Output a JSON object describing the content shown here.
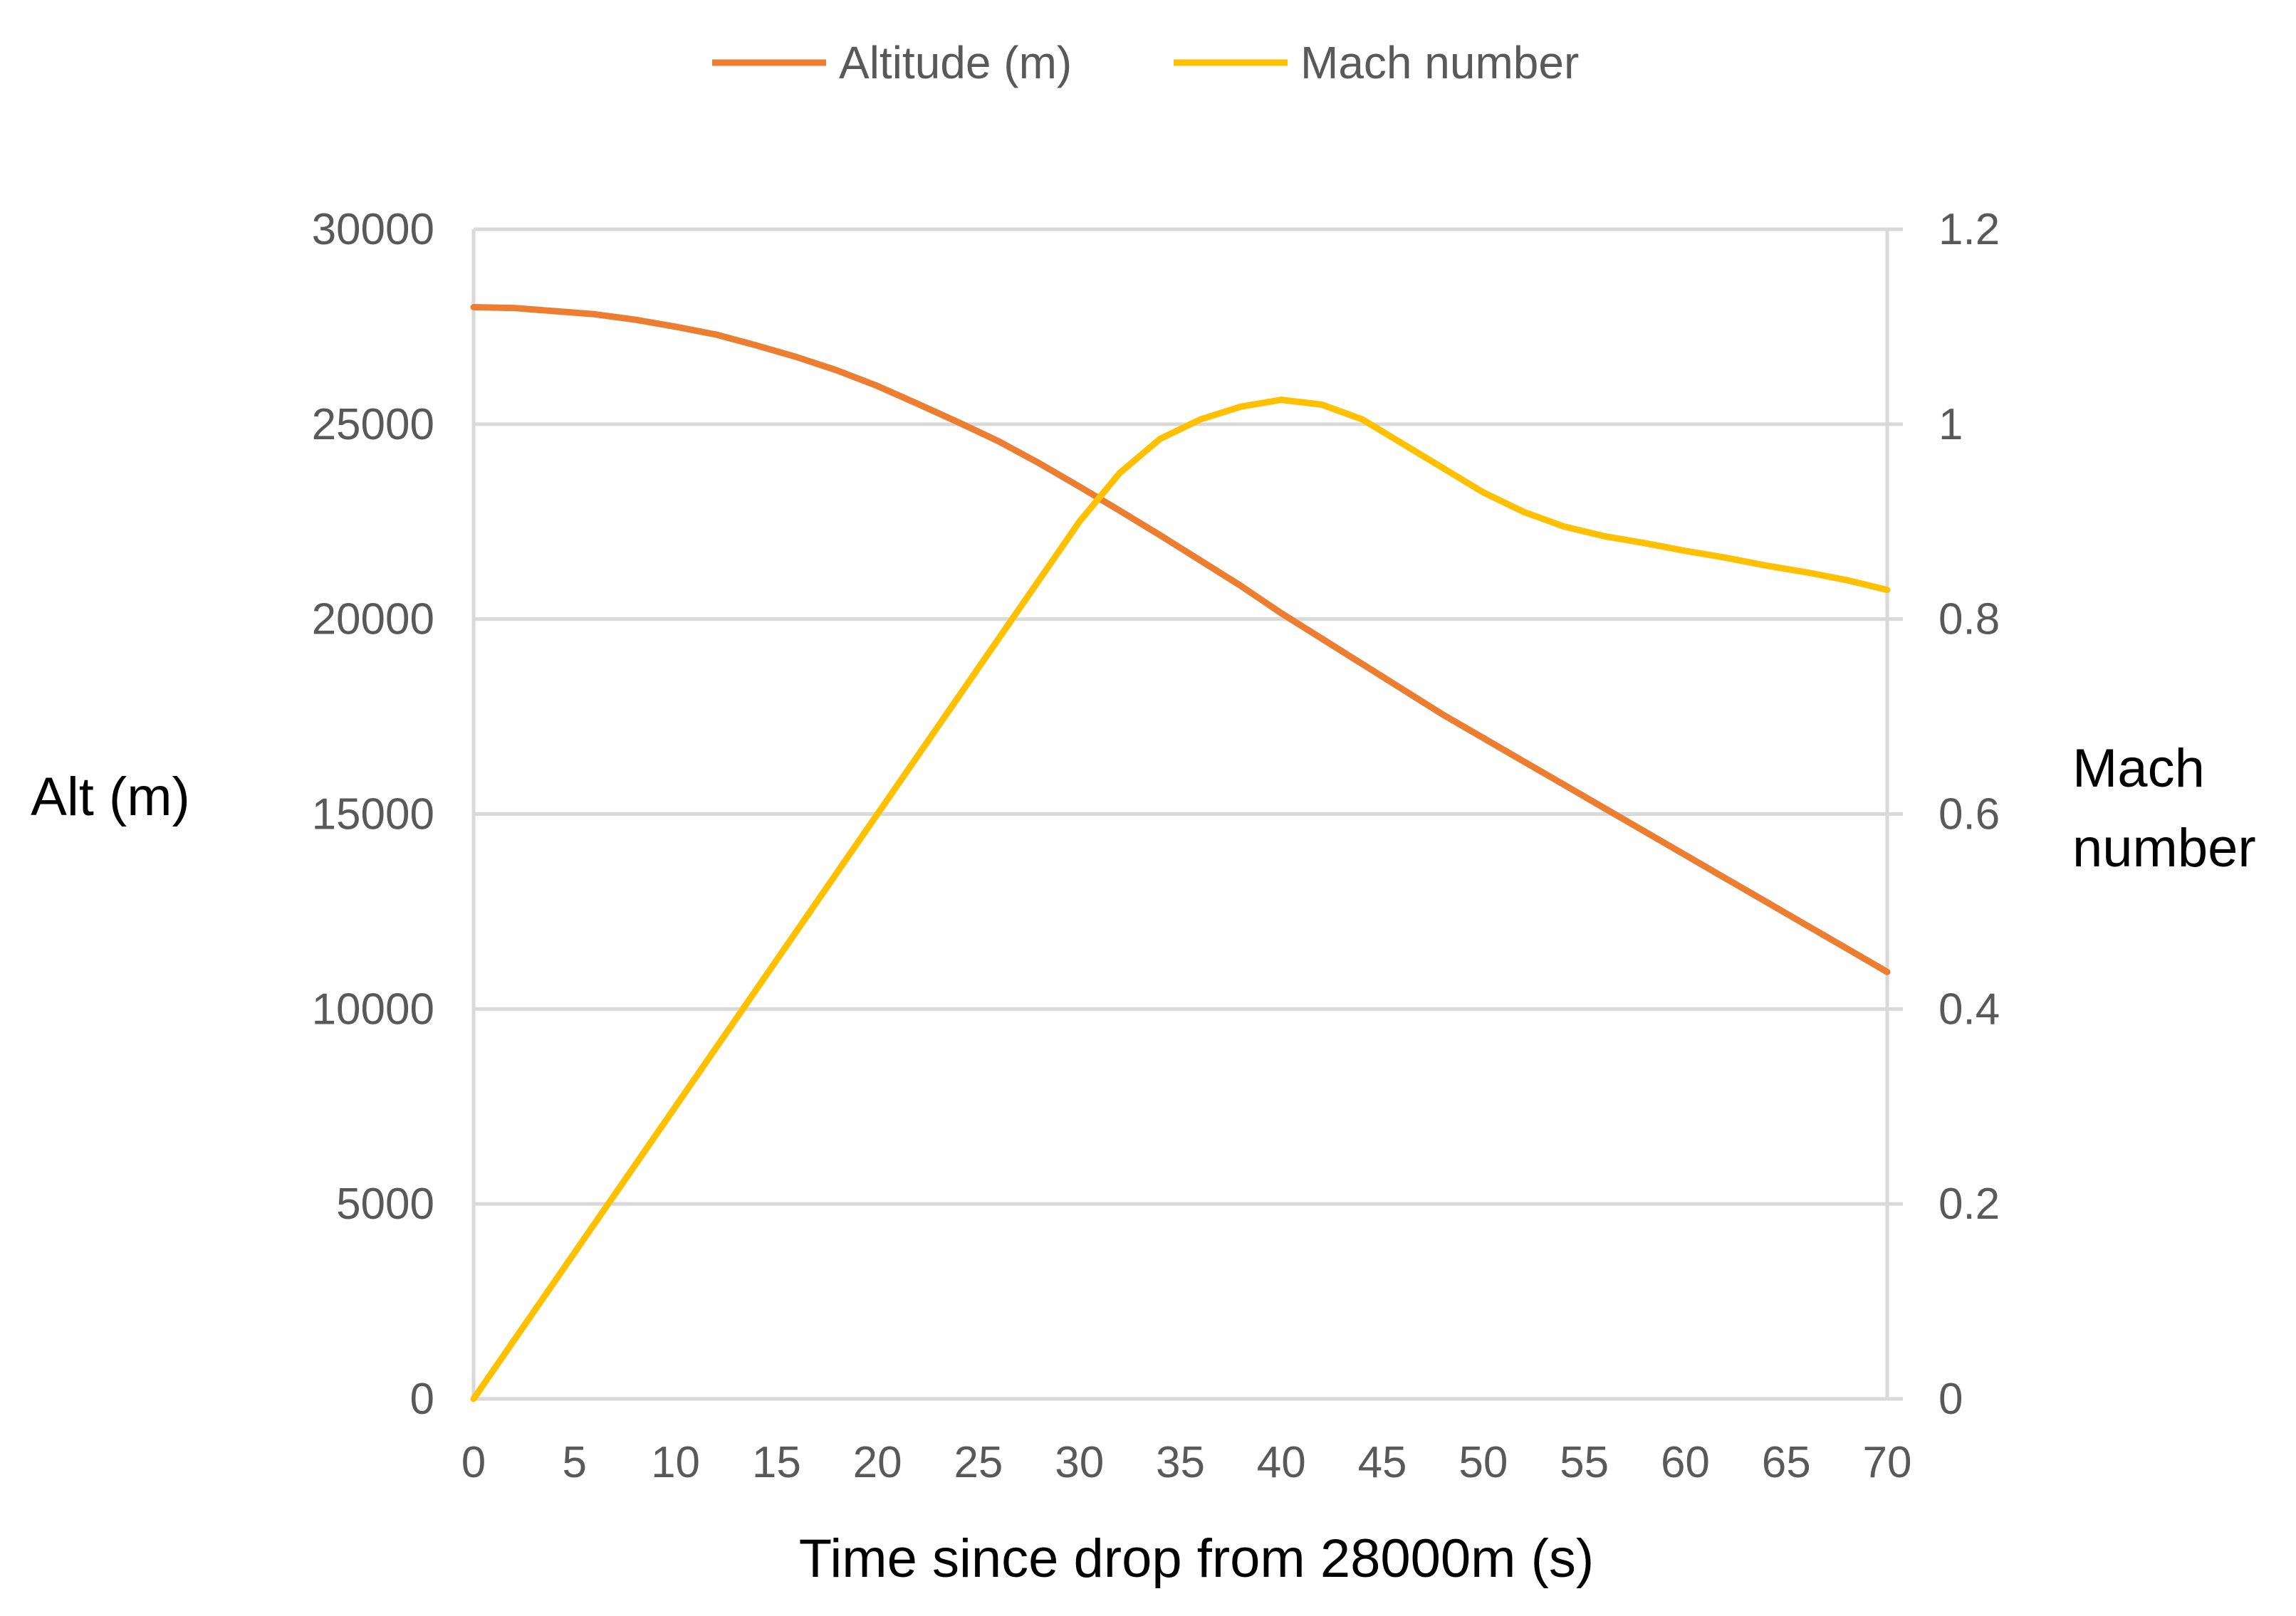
{
  "chart_data": {
    "type": "line",
    "title": "",
    "xlabel": "Time since drop from 28000m (s)",
    "ylabel": "Alt (m)",
    "y2label_lines": [
      "Mach",
      "number"
    ],
    "xlim": [
      0,
      70
    ],
    "ylim": [
      0,
      30000
    ],
    "y2lim": [
      0,
      1.2
    ],
    "x_ticks": [
      0,
      5,
      10,
      15,
      20,
      25,
      30,
      35,
      40,
      45,
      50,
      55,
      60,
      65,
      70
    ],
    "y_ticks": [
      0,
      5000,
      10000,
      15000,
      20000,
      25000,
      30000
    ],
    "y2_ticks": [
      "0",
      "0.2",
      "0.4",
      "0.6",
      "0.8",
      "1",
      "1.2"
    ],
    "grid": true,
    "legend_position": "top-center",
    "x": [
      0,
      2,
      4,
      6,
      8,
      10,
      12,
      14,
      16,
      18,
      20,
      22,
      24,
      26,
      28,
      30,
      32,
      34,
      36,
      38,
      40,
      42,
      44,
      46,
      48,
      50,
      52,
      54,
      56,
      58,
      60,
      62,
      64,
      66,
      68,
      70
    ],
    "series": [
      {
        "name": "Altitude (m)",
        "axis": "left",
        "color": "#ED7D31",
        "values": [
          28000,
          27980,
          27900,
          27820,
          27680,
          27500,
          27300,
          27020,
          26720,
          26380,
          25980,
          25520,
          25050,
          24560,
          24000,
          23400,
          22780,
          22150,
          21500,
          20850,
          20150,
          19500,
          18850,
          18200,
          17550,
          16950,
          16350,
          15750,
          15150,
          14550,
          13950,
          13350,
          12750,
          12150,
          11550,
          10950
        ]
      },
      {
        "name": "Mach number",
        "axis": "right",
        "color": "#FFC000",
        "values": [
          0.0,
          0.06,
          0.12,
          0.18,
          0.24,
          0.3,
          0.36,
          0.42,
          0.48,
          0.54,
          0.6,
          0.66,
          0.72,
          0.78,
          0.84,
          0.9,
          0.95,
          0.985,
          1.005,
          1.018,
          1.025,
          1.02,
          1.005,
          0.98,
          0.955,
          0.93,
          0.91,
          0.895,
          0.885,
          0.878,
          0.87,
          0.863,
          0.855,
          0.848,
          0.84,
          0.83
        ]
      }
    ]
  }
}
